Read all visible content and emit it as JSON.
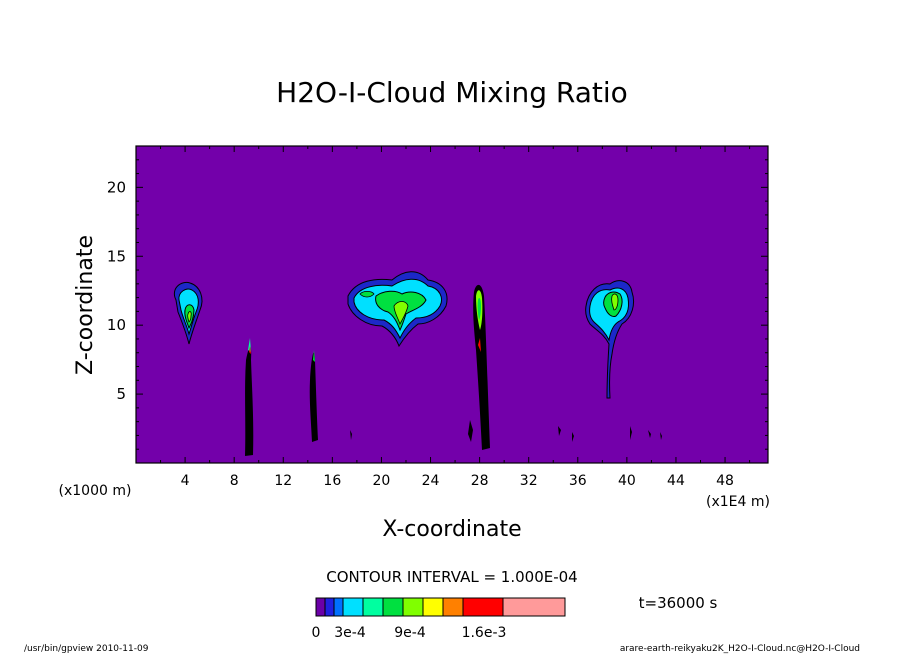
{
  "chart_data": {
    "type": "contour",
    "title": "H2O-I-Cloud Mixing Ratio",
    "xlabel": "X-coordinate",
    "ylabel": "Z-coordinate",
    "x_unit_left": "(x1000 m)",
    "x_unit_right": "(x1E4 m)",
    "xlim": [
      0,
      51.5
    ],
    "ylim": [
      0,
      23
    ],
    "xticks": [
      "4",
      "8",
      "12",
      "16",
      "20",
      "24",
      "28",
      "32",
      "36",
      "40",
      "44",
      "48"
    ],
    "yticks": [
      "5",
      "10",
      "15",
      "20"
    ],
    "contour_interval_text": "CONTOUR INTERVAL = 1.000E-04",
    "time_label": "t=36000 s",
    "colorbar": {
      "colors": [
        "#6b00a8",
        "#2020e0",
        "#0070ff",
        "#00e0ff",
        "#00ffa0",
        "#00e040",
        "#80ff00",
        "#ffff00",
        "#ff8000",
        "#ff0000",
        "#ff9a9a"
      ],
      "labels": [
        "0",
        "3e-4",
        "9e-4",
        "1.6e-3"
      ]
    },
    "background_color": "#7300aa",
    "features": [
      {
        "kind": "cloud",
        "x": 4.2,
        "z": 11.0,
        "note": "anvil near 4x1E4 m"
      },
      {
        "kind": "column",
        "x": 9.2,
        "z_bottom": 0.5,
        "z_top": 8.5
      },
      {
        "kind": "column",
        "x": 14.3,
        "z_bottom": 1.5,
        "z_top": 8.0
      },
      {
        "kind": "cloud",
        "x": 21.5,
        "z": 11.5,
        "note": "wide anvil near 20-24x1E4 m"
      },
      {
        "kind": "column",
        "x": 28.0,
        "z_bottom": 1.0,
        "z_top": 12.5
      },
      {
        "kind": "cloud",
        "x": 38.5,
        "z": 11.0,
        "note": "cloud near 38-40x1E4 m"
      }
    ]
  },
  "footer": {
    "left": "/usr/bin/gpview  2010-11-09",
    "right": "arare-earth-reikyaku2K_H2O-I-Cloud.nc@H2O-I-Cloud"
  }
}
